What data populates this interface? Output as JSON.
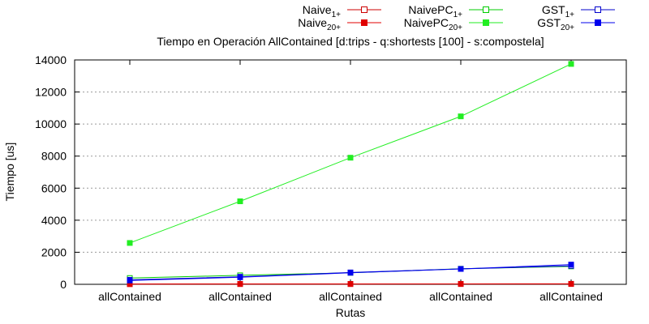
{
  "chart_data": {
    "type": "line",
    "title": "Tiempo en Operación AllContained [d:trips - q:shortests [100] - s:compostela]",
    "xlabel": "Rutas",
    "ylabel": "Tiempo [us]",
    "categories": [
      "allContained",
      "allContained",
      "allContained",
      "allContained",
      "allContained"
    ],
    "ylim": [
      0,
      14000
    ],
    "yticks": [
      0,
      2000,
      4000,
      6000,
      8000,
      10000,
      12000,
      14000
    ],
    "grid": "horizontal dotted",
    "legend_position": "top-right",
    "series": [
      {
        "name": "Naive",
        "sub": "1+",
        "color": "#cc0000",
        "marker": "open-square",
        "values": [
          20,
          25,
          25,
          28,
          30
        ]
      },
      {
        "name": "Naive",
        "sub": "20+",
        "color": "#e00000",
        "marker": "filled-square",
        "values": [
          10,
          15,
          15,
          18,
          20
        ]
      },
      {
        "name": "NaivePC",
        "sub": "1+",
        "color": "#00cc00",
        "marker": "open-square",
        "values": [
          390,
          560,
          720,
          970,
          1120
        ]
      },
      {
        "name": "NaivePC",
        "sub": "20+",
        "color": "#22ee22",
        "marker": "filled-square",
        "values": [
          2580,
          5180,
          7900,
          10480,
          13750
        ]
      },
      {
        "name": "GST",
        "sub": "1+",
        "color": "#0000cc",
        "marker": "open-square",
        "values": [
          280,
          470,
          740,
          960,
          1150
        ]
      },
      {
        "name": "GST",
        "sub": "20+",
        "color": "#0000ee",
        "marker": "filled-square",
        "values": [
          240,
          440,
          720,
          960,
          1230
        ]
      }
    ]
  }
}
